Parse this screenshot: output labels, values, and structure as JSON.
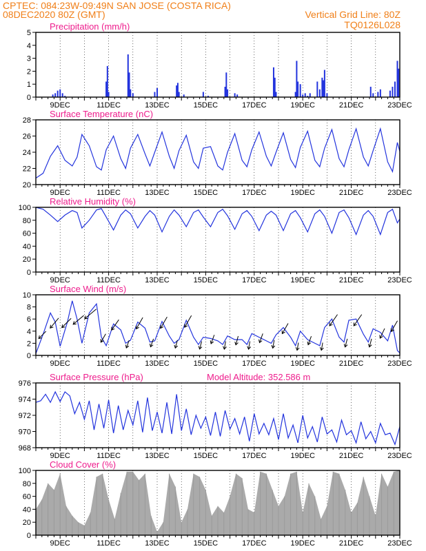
{
  "header": {
    "line1_left": "CPTEC:  084:23W-09:49N  SAN JOSE (COSTA RICA)",
    "line2_left": "08DEC2020 80Z (GMT)",
    "line2_right": "Vertical Grid Line: 80Z",
    "line3_right": "TQ0126L028"
  },
  "colors": {
    "header": "#f07f18",
    "panel_title": "#ee1c8c",
    "line": "#2233dd",
    "cloud": "#aaaaaa"
  },
  "time_axis": {
    "start": "08DEC",
    "end": "23DEC",
    "range_days": [
      8,
      23
    ],
    "labels": [
      "9DEC",
      "11DEC",
      "13DEC",
      "15DEC",
      "17DEC",
      "19DEC",
      "21DEC",
      "23DEC"
    ],
    "label_days": [
      9,
      11,
      13,
      15,
      17,
      19,
      21,
      23
    ]
  },
  "chart_data": [
    {
      "type": "bar",
      "title": "Precipitation (mm/h)",
      "ylim": [
        0,
        5
      ],
      "yticks": [
        0,
        1,
        2,
        3,
        4,
        5
      ],
      "x_days": [
        8.7,
        8.8,
        8.9,
        9.0,
        9.1,
        9.2,
        10.9,
        10.95,
        11.0,
        11.8,
        11.85,
        11.9,
        12.0,
        12.9,
        13.0,
        13.8,
        13.85,
        13.9,
        14.1,
        14.9,
        15.1,
        15.8,
        15.85,
        15.9,
        16.2,
        16.3,
        17.8,
        17.85,
        17.9,
        18.7,
        18.75,
        18.8,
        18.9,
        19.0,
        19.1,
        19.2,
        19.3,
        19.6,
        19.7,
        19.8,
        19.85,
        19.9,
        20.0,
        21.8,
        21.9,
        22.1,
        22.2,
        22.6,
        22.7,
        22.8,
        22.9,
        22.95
      ],
      "values": [
        0.2,
        0.3,
        0.5,
        0.6,
        0.3,
        0.1,
        1.2,
        2.4,
        0.4,
        3.3,
        1.9,
        0.6,
        0.3,
        0.4,
        0.7,
        0.9,
        1.1,
        0.4,
        0.2,
        0.4,
        0.1,
        0.8,
        1.9,
        0.6,
        0.3,
        0.2,
        2.3,
        1.5,
        0.4,
        0.4,
        2.8,
        1.2,
        1.0,
        0.2,
        0.3,
        0.1,
        0.3,
        1.2,
        0.6,
        1.5,
        1.3,
        2.1,
        0.3,
        0.8,
        0.3,
        0.4,
        0.6,
        0.5,
        0.8,
        1.2,
        2.8,
        2.2
      ]
    },
    {
      "type": "line",
      "title": "Surface Temperature (nC)",
      "ylim": [
        20,
        28
      ],
      "yticks": [
        20,
        22,
        24,
        26,
        28
      ],
      "x_days": [
        8.0,
        8.3,
        8.6,
        8.9,
        9.2,
        9.5,
        9.7,
        9.9,
        10.2,
        10.5,
        10.7,
        10.9,
        11.2,
        11.5,
        11.7,
        11.9,
        12.2,
        12.5,
        12.7,
        12.9,
        13.2,
        13.5,
        13.7,
        13.9,
        14.2,
        14.5,
        14.7,
        14.9,
        15.2,
        15.5,
        15.7,
        15.9,
        16.2,
        16.5,
        16.7,
        16.9,
        17.2,
        17.5,
        17.7,
        17.9,
        18.2,
        18.5,
        18.7,
        18.9,
        19.2,
        19.5,
        19.7,
        19.9,
        20.2,
        20.5,
        20.7,
        20.9,
        21.2,
        21.5,
        21.7,
        21.9,
        22.2,
        22.5,
        22.7,
        22.9,
        23.0
      ],
      "values": [
        20.8,
        21.4,
        23.5,
        24.8,
        23.0,
        22.3,
        23.4,
        26.2,
        24.8,
        22.2,
        21.8,
        24.3,
        26.0,
        23.2,
        22.0,
        24.5,
        26.2,
        23.8,
        22.3,
        24.0,
        26.5,
        23.5,
        22.0,
        24.2,
        26.1,
        22.8,
        22.0,
        24.5,
        24.7,
        22.3,
        21.8,
        24.0,
        26.3,
        23.0,
        22.2,
        24.3,
        26.5,
        23.5,
        22.3,
        24.0,
        26.4,
        23.1,
        22.1,
        24.6,
        26.6,
        23.0,
        22.2,
        24.5,
        26.8,
        23.2,
        22.2,
        24.3,
        26.9,
        23.4,
        22.3,
        24.2,
        26.9,
        22.8,
        21.6,
        25.2,
        24.1
      ]
    },
    {
      "type": "line",
      "title": "Relative Humidity (%)",
      "ylim": [
        0,
        100
      ],
      "yticks": [
        0,
        20,
        40,
        60,
        80,
        100
      ],
      "x_days": [
        8.0,
        8.3,
        8.6,
        8.9,
        9.2,
        9.5,
        9.7,
        9.9,
        10.2,
        10.5,
        10.7,
        10.9,
        11.2,
        11.5,
        11.7,
        11.9,
        12.2,
        12.5,
        12.7,
        12.9,
        13.2,
        13.5,
        13.7,
        13.9,
        14.2,
        14.5,
        14.7,
        14.9,
        15.2,
        15.5,
        15.7,
        15.9,
        16.2,
        16.5,
        16.7,
        16.9,
        17.2,
        17.5,
        17.7,
        17.9,
        18.2,
        18.5,
        18.7,
        18.9,
        19.2,
        19.5,
        19.7,
        19.9,
        20.2,
        20.5,
        20.7,
        20.9,
        21.2,
        21.5,
        21.7,
        21.9,
        22.2,
        22.5,
        22.7,
        22.9,
        23.0
      ],
      "values": [
        100,
        97,
        88,
        78,
        88,
        95,
        92,
        68,
        80,
        96,
        98,
        85,
        65,
        88,
        96,
        90,
        68,
        86,
        95,
        88,
        62,
        86,
        96,
        88,
        70,
        92,
        96,
        85,
        70,
        92,
        97,
        87,
        66,
        90,
        95,
        86,
        64,
        88,
        94,
        88,
        64,
        90,
        95,
        84,
        62,
        90,
        96,
        86,
        60,
        92,
        96,
        84,
        58,
        88,
        95,
        86,
        58,
        92,
        97,
        76,
        82
      ]
    },
    {
      "type": "line",
      "title": "Surface Wind (m/s)",
      "ylim": [
        0,
        10
      ],
      "yticks": [
        0,
        2,
        4,
        6,
        8,
        10
      ],
      "x_days": [
        8.0,
        8.3,
        8.6,
        8.8,
        9.0,
        9.3,
        9.5,
        9.7,
        9.9,
        10.2,
        10.5,
        10.7,
        10.9,
        11.2,
        11.5,
        11.7,
        11.9,
        12.2,
        12.5,
        12.7,
        12.9,
        13.2,
        13.5,
        13.7,
        13.9,
        14.2,
        14.5,
        14.7,
        14.9,
        15.2,
        15.5,
        15.7,
        15.9,
        16.2,
        16.5,
        16.7,
        16.9,
        17.2,
        17.5,
        17.7,
        17.9,
        18.2,
        18.5,
        18.7,
        18.9,
        19.2,
        19.5,
        19.7,
        19.9,
        20.2,
        20.5,
        20.7,
        20.9,
        21.2,
        21.5,
        21.7,
        21.9,
        22.2,
        22.5,
        22.7,
        22.9,
        23.0
      ],
      "values": [
        0.3,
        3.5,
        7.0,
        5.5,
        1.5,
        5.5,
        9.0,
        6.0,
        2.0,
        7.0,
        8.5,
        3.0,
        1.6,
        5.2,
        4.2,
        2.0,
        2.5,
        5.5,
        4.5,
        2.2,
        2.4,
        5.6,
        3.2,
        2.0,
        2.6,
        5.8,
        3.0,
        1.8,
        3.0,
        2.8,
        2.4,
        1.8,
        3.2,
        2.6,
        2.6,
        1.8,
        3.6,
        3.0,
        2.4,
        2.0,
        3.4,
        4.6,
        3.0,
        1.6,
        4.0,
        2.6,
        2.0,
        1.6,
        4.6,
        6.0,
        3.0,
        2.2,
        5.8,
        6.0,
        3.5,
        2.2,
        4.4,
        3.8,
        2.4,
        5.0,
        0.8,
        0.4
      ],
      "arrows": {
        "x_days": [
          8.3,
          8.8,
          9.3,
          9.8,
          10.3,
          10.8,
          11.3,
          11.8,
          12.3,
          12.8,
          13.3,
          13.8,
          14.3,
          14.8,
          15.3,
          15.8,
          16.3,
          16.8,
          17.3,
          17.8,
          18.3,
          18.8,
          19.3,
          19.8,
          20.3,
          20.8,
          21.3,
          21.8,
          22.3,
          22.8
        ],
        "speed": [
          3.5,
          5.5,
          5.5,
          6.0,
          7.0,
          3.0,
          5.2,
          2.0,
          5.5,
          2.2,
          5.6,
          2.0,
          5.8,
          1.8,
          2.8,
          1.8,
          2.6,
          1.8,
          3.0,
          2.0,
          4.6,
          1.6,
          2.6,
          1.6,
          6.0,
          2.2,
          6.0,
          2.2,
          3.8,
          5.0
        ],
        "dir_deg": [
          45,
          50,
          45,
          40,
          40,
          60,
          55,
          70,
          60,
          70,
          60,
          75,
          60,
          75,
          70,
          80,
          75,
          80,
          70,
          80,
          60,
          80,
          70,
          80,
          55,
          75,
          55,
          75,
          65,
          60
        ]
      }
    },
    {
      "type": "line",
      "title": "Surface Pressure (hPa)",
      "annotation": "Model Altitude: 352.586 m",
      "ylim": [
        968,
        976
      ],
      "yticks": [
        968,
        970,
        972,
        974,
        976
      ],
      "x_days": [
        8.0,
        8.2,
        8.4,
        8.6,
        8.8,
        9.0,
        9.2,
        9.4,
        9.6,
        9.8,
        10.0,
        10.2,
        10.4,
        10.6,
        10.8,
        11.0,
        11.2,
        11.4,
        11.6,
        11.8,
        12.0,
        12.2,
        12.4,
        12.6,
        12.8,
        13.0,
        13.2,
        13.4,
        13.6,
        13.8,
        14.0,
        14.2,
        14.4,
        14.6,
        14.8,
        15.0,
        15.2,
        15.4,
        15.6,
        15.8,
        16.0,
        16.2,
        16.4,
        16.6,
        16.8,
        17.0,
        17.2,
        17.4,
        17.6,
        17.8,
        18.0,
        18.2,
        18.4,
        18.6,
        18.8,
        19.0,
        19.2,
        19.4,
        19.6,
        19.8,
        20.0,
        20.2,
        20.4,
        20.6,
        20.8,
        21.0,
        21.2,
        21.4,
        21.6,
        21.8,
        22.0,
        22.2,
        22.4,
        22.6,
        22.8,
        23.0
      ],
      "values": [
        973.6,
        973.8,
        974.6,
        973.6,
        974.9,
        973.7,
        974.9,
        974.4,
        972.2,
        973.6,
        971.5,
        973.8,
        970.2,
        973.4,
        970.4,
        973.9,
        969.8,
        973.2,
        970.2,
        972.6,
        970.8,
        973.8,
        969.9,
        974.2,
        970.1,
        972.4,
        969.8,
        973.6,
        969.7,
        974.6,
        970.1,
        972.8,
        969.6,
        972.0,
        970.4,
        971.8,
        969.5,
        972.4,
        969.4,
        972.6,
        970.3,
        971.6,
        969.7,
        971.8,
        968.8,
        972.2,
        969.7,
        971.0,
        969.6,
        971.6,
        969.0,
        972.2,
        969.2,
        970.8,
        968.6,
        972.0,
        969.2,
        970.6,
        968.7,
        971.8,
        969.7,
        970.2,
        968.7,
        971.4,
        969.6,
        970.1,
        968.6,
        971.2,
        969.1,
        970.0,
        968.6,
        971.0,
        969.6,
        969.8,
        968.4,
        970.6
      ]
    },
    {
      "type": "area",
      "title": "Cloud Cover (%)",
      "ylim": [
        0,
        100
      ],
      "yticks": [
        0,
        20,
        40,
        60,
        80,
        100
      ],
      "x_days": [
        8.0,
        8.25,
        8.5,
        8.75,
        9.0,
        9.25,
        9.5,
        9.75,
        10.0,
        10.25,
        10.5,
        10.75,
        11.0,
        11.25,
        11.5,
        11.75,
        12.0,
        12.25,
        12.5,
        12.75,
        13.0,
        13.25,
        13.5,
        13.75,
        14.0,
        14.25,
        14.5,
        14.75,
        15.0,
        15.25,
        15.5,
        15.75,
        16.0,
        16.25,
        16.5,
        16.75,
        17.0,
        17.25,
        17.5,
        17.75,
        18.0,
        18.25,
        18.5,
        18.75,
        19.0,
        19.25,
        19.5,
        19.75,
        20.0,
        20.25,
        20.5,
        20.75,
        21.0,
        21.25,
        21.5,
        21.75,
        22.0,
        22.25,
        22.5,
        22.75,
        23.0
      ],
      "values": [
        40,
        55,
        80,
        70,
        95,
        45,
        30,
        20,
        15,
        35,
        90,
        95,
        55,
        25,
        65,
        98,
        98,
        85,
        95,
        30,
        5,
        20,
        95,
        75,
        20,
        40,
        95,
        90,
        70,
        30,
        45,
        35,
        60,
        95,
        88,
        40,
        35,
        98,
        95,
        70,
        45,
        60,
        95,
        98,
        35,
        80,
        60,
        25,
        45,
        98,
        95,
        70,
        35,
        50,
        90,
        60,
        30,
        95,
        75,
        98,
        100
      ]
    }
  ]
}
